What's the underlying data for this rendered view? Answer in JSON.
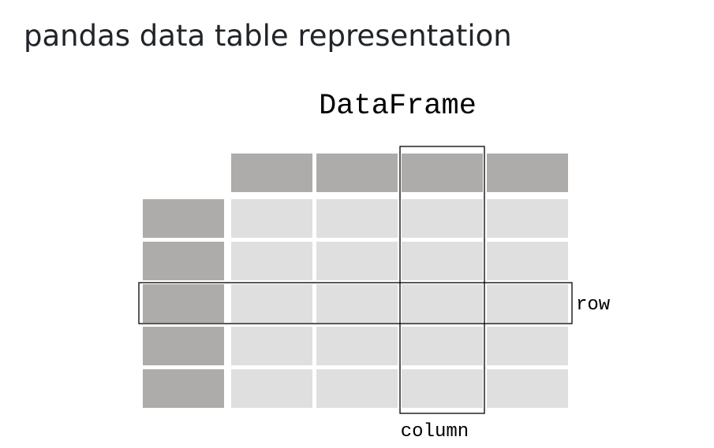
{
  "page": {
    "heading": "pandas data table representation"
  },
  "diagram": {
    "title": "DataFrame",
    "row_label": "row",
    "column_label": "column",
    "grid": {
      "header_columns": 4,
      "data_rows": 5,
      "highlighted_row": 3,
      "highlighted_column": 3
    },
    "colors": {
      "header_cell": "#aeabab",
      "data_cell": "#e0dfe0",
      "highlight_outline": "#000000",
      "text": "#000000"
    }
  }
}
